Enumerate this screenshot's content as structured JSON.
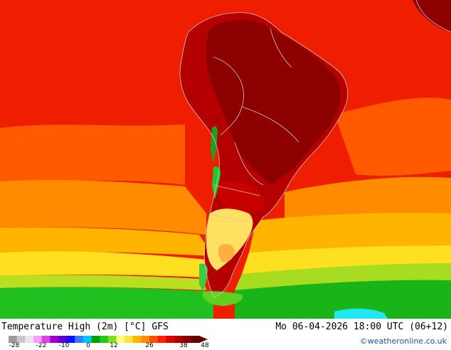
{
  "title": "Temperature High (2m) [°C] GFS",
  "datetime": "Mo 06-04-2026 18:00 UTC (06+12)",
  "credit": "©weatheronline.co.uk",
  "legend": {
    "ticks": [
      "-28",
      "-22",
      "-10",
      "0",
      "12",
      "26",
      "38",
      "48"
    ],
    "colors": [
      "#9a9a9a",
      "#c8c8c8",
      "#e8e8e8",
      "#ff9cff",
      "#e040e0",
      "#a000c8",
      "#6000d0",
      "#1010ff",
      "#3c78ff",
      "#00c8ff",
      "#00a000",
      "#20c820",
      "#80e020",
      "#ffff80",
      "#ffe040",
      "#ffb400",
      "#ff8c00",
      "#ff5000",
      "#ff1e00",
      "#dc0000",
      "#b40000",
      "#8c0000",
      "#640000"
    ]
  },
  "map": {
    "region": "South America",
    "variable": "Temperature High (2m)",
    "unit": "°C",
    "model": "GFS"
  }
}
